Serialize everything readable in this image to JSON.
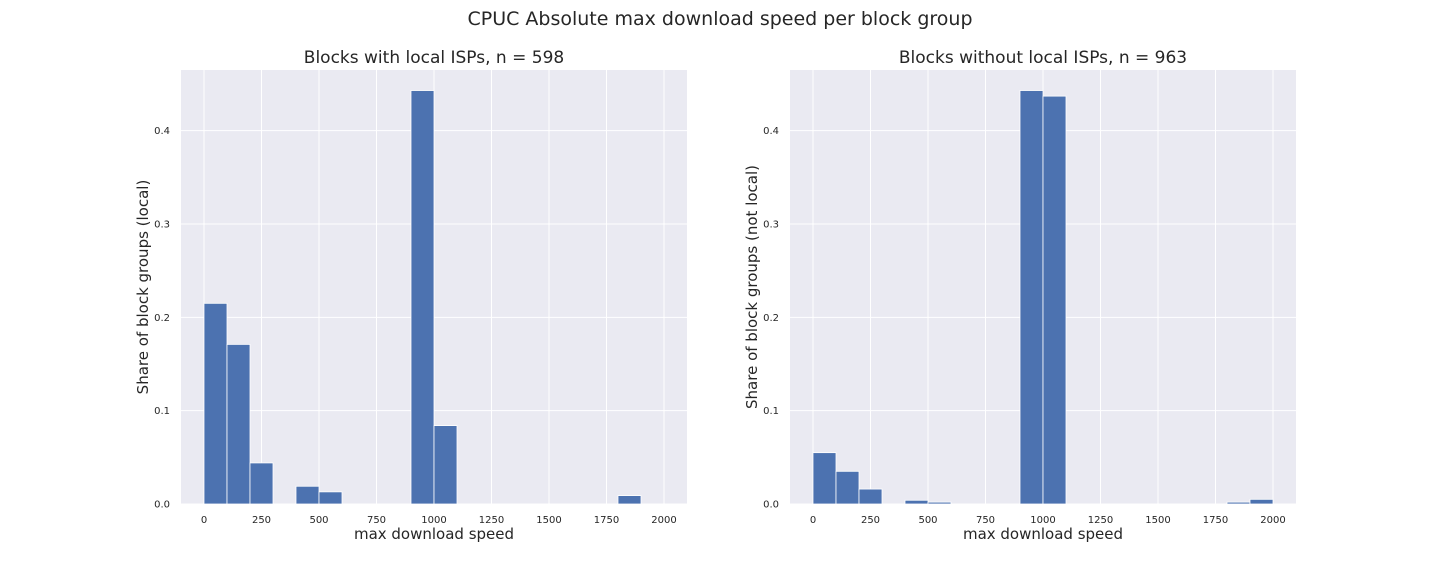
{
  "figure": {
    "title": "CPUC Absolute max download speed per block group"
  },
  "chart_data": [
    {
      "type": "bar",
      "title": "Blocks with local ISPs, n = 598",
      "xlabel": "max download speed",
      "ylabel": "Share of block groups (local)",
      "xlim": [
        -100,
        2100
      ],
      "ylim": [
        0,
        0.465
      ],
      "xticks": [
        0,
        250,
        500,
        750,
        1000,
        1250,
        1500,
        1750,
        2000
      ],
      "yticks": [
        0.0,
        0.1,
        0.2,
        0.3,
        0.4
      ],
      "bin_width": 100,
      "bins": [
        {
          "x": 0,
          "value": 0.215
        },
        {
          "x": 100,
          "value": 0.171
        },
        {
          "x": 200,
          "value": 0.044
        },
        {
          "x": 300,
          "value": 0.0
        },
        {
          "x": 400,
          "value": 0.019
        },
        {
          "x": 500,
          "value": 0.013
        },
        {
          "x": 600,
          "value": 0.0
        },
        {
          "x": 700,
          "value": 0.0
        },
        {
          "x": 800,
          "value": 0.0
        },
        {
          "x": 900,
          "value": 0.443
        },
        {
          "x": 1000,
          "value": 0.084
        },
        {
          "x": 1100,
          "value": 0.0
        },
        {
          "x": 1200,
          "value": 0.0
        },
        {
          "x": 1300,
          "value": 0.0
        },
        {
          "x": 1400,
          "value": 0.0
        },
        {
          "x": 1500,
          "value": 0.0
        },
        {
          "x": 1600,
          "value": 0.0
        },
        {
          "x": 1700,
          "value": 0.0
        },
        {
          "x": 1800,
          "value": 0.009
        },
        {
          "x": 1900,
          "value": 0.0
        }
      ],
      "bar_color": "#4c72b0",
      "background": "#eaeaf2",
      "grid": true
    },
    {
      "type": "bar",
      "title": "Blocks without local ISPs, n = 963",
      "xlabel": "max download speed",
      "ylabel": "Share of block groups (not local)",
      "xlim": [
        -100,
        2100
      ],
      "ylim": [
        0,
        0.465
      ],
      "xticks": [
        0,
        250,
        500,
        750,
        1000,
        1250,
        1500,
        1750,
        2000
      ],
      "yticks": [
        0.0,
        0.1,
        0.2,
        0.3,
        0.4
      ],
      "bin_width": 100,
      "bins": [
        {
          "x": 0,
          "value": 0.055
        },
        {
          "x": 100,
          "value": 0.035
        },
        {
          "x": 200,
          "value": 0.016
        },
        {
          "x": 300,
          "value": 0.0
        },
        {
          "x": 400,
          "value": 0.004
        },
        {
          "x": 500,
          "value": 0.002
        },
        {
          "x": 600,
          "value": 0.0
        },
        {
          "x": 700,
          "value": 0.0
        },
        {
          "x": 800,
          "value": 0.0
        },
        {
          "x": 900,
          "value": 0.443
        },
        {
          "x": 1000,
          "value": 0.437
        },
        {
          "x": 1100,
          "value": 0.0
        },
        {
          "x": 1200,
          "value": 0.0
        },
        {
          "x": 1300,
          "value": 0.0
        },
        {
          "x": 1400,
          "value": 0.0
        },
        {
          "x": 1500,
          "value": 0.0
        },
        {
          "x": 1600,
          "value": 0.0
        },
        {
          "x": 1700,
          "value": 0.0
        },
        {
          "x": 1800,
          "value": 0.002
        },
        {
          "x": 1900,
          "value": 0.005
        }
      ],
      "bar_color": "#4c72b0",
      "background": "#eaeaf2",
      "grid": true
    }
  ]
}
